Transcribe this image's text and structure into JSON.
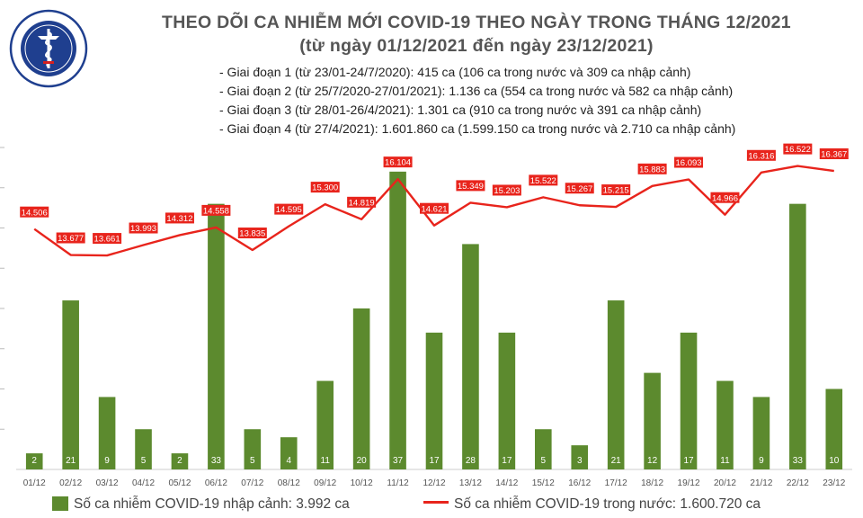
{
  "header": {
    "title_line1": "THEO DÕI CA NHIỄM MỚI COVID-19 THEO NGÀY TRONG THÁNG 12/2021",
    "title_line2": "(từ ngày 01/12/2021 đến ngày 23/12/2021)",
    "logo_top_text": "BỘ Y TẾ",
    "logo_bottom_text": "MINISTRY OF HEALTH"
  },
  "stats": [
    "- Giai đoạn 1 (từ 23/01-24/7/2020): 415 ca (106 ca trong nước và 309 ca nhập cảnh)",
    "- Giai đoạn 2 (từ 25/7/2020-27/01/2021): 1.136 ca (554 ca trong nước và 582 ca nhập cảnh)",
    "- Giai đoạn 3 (từ 28/01-26/4/2021): 1.301 ca (910 ca trong nước và 391 ca nhập cảnh)",
    "- Giai đoạn 4 (từ 27/4/2021): 1.601.860 ca (1.599.150 ca trong nước và 2.710 ca nhập cảnh)"
  ],
  "legend": {
    "bar_label": "Số ca nhiễm COVID-19 nhập cảnh: 3.992 ca",
    "line_label": "Số ca nhiễm COVID-19 trong nước: 1.600.720 ca"
  },
  "colors": {
    "bar": "#5c8a2e",
    "line": "#e8241c",
    "title": "#555555",
    "logo": "#1f3f8f"
  },
  "chart_data": {
    "type": "bar",
    "categories": [
      "01/12",
      "02/12",
      "03/12",
      "04/12",
      "05/12",
      "06/12",
      "07/12",
      "08/12",
      "09/12",
      "10/12",
      "11/12",
      "12/12",
      "13/12",
      "14/12",
      "15/12",
      "16/12",
      "17/12",
      "18/12",
      "19/12",
      "20/12",
      "21/12",
      "22/12",
      "23/12"
    ],
    "series": [
      {
        "name": "Số ca nhiễm COVID-19 nhập cảnh: 3.992 ca",
        "type": "bar",
        "axis": "left",
        "values": [
          2,
          21,
          9,
          5,
          2,
          33,
          5,
          4,
          11,
          20,
          37,
          17,
          28,
          17,
          5,
          3,
          21,
          12,
          17,
          11,
          9,
          33,
          10
        ],
        "labels": [
          "2",
          "21",
          "9",
          "5",
          "2",
          "33",
          "5",
          "4",
          "11",
          "20",
          "37",
          "17",
          "28",
          "17",
          "5",
          "3",
          "21",
          "12",
          "17",
          "11",
          "9",
          "33",
          "10"
        ]
      },
      {
        "name": "Số ca nhiễm COVID-19 trong nước: 1.600.720 ca",
        "type": "line",
        "axis": "right",
        "values": [
          14506,
          13677,
          13661,
          13993,
          14312,
          14558,
          13835,
          14595,
          15300,
          14819,
          16104,
          14621,
          15349,
          15203,
          15522,
          15267,
          15215,
          15883,
          16093,
          14966,
          16316,
          16522,
          16367
        ],
        "labels": [
          "14.506",
          "13.677",
          "13.661",
          "13.993",
          "14.312",
          "14.558",
          "13.835",
          "14.595",
          "15.300",
          "14.819",
          "16.104",
          "14.621",
          "15.349",
          "15.203",
          "15.522",
          "15.267",
          "15.215",
          "15.883",
          "16.093",
          "14.966",
          "16.316",
          "16.522",
          "16.367"
        ]
      }
    ],
    "bar_ylim": [
      0,
      40
    ],
    "line_ylim": [
      6500,
      17000
    ],
    "grid": false,
    "legend_position": "bottom"
  }
}
